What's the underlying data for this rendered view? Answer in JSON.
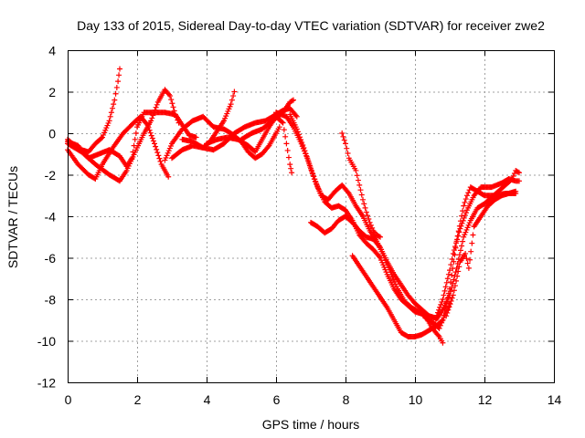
{
  "chart_data": {
    "type": "scatter",
    "title": "Day 133 of 2015, Sidereal Day-to-day VTEC variation (SDTVAR) for receiver zwe2",
    "xlabel": "GPS time / hours",
    "ylabel": "SDTVAR / TECUs",
    "xlim": [
      0,
      14
    ],
    "ylim": [
      -12,
      4
    ],
    "xticks": [
      0,
      2,
      4,
      6,
      8,
      10,
      12,
      14
    ],
    "yticks": [
      -12,
      -10,
      -8,
      -6,
      -4,
      -2,
      0,
      2,
      4
    ],
    "grid": true,
    "marker": "plus",
    "color": "#ff0000",
    "series": [
      {
        "points": [
          [
            0.0,
            -0.3
          ],
          [
            0.2,
            -0.6
          ],
          [
            0.4,
            -0.8
          ],
          [
            0.6,
            -0.9
          ],
          [
            0.8,
            -0.5
          ],
          [
            1.0,
            -0.2
          ],
          [
            1.2,
            0.6
          ],
          [
            1.35,
            1.6
          ],
          [
            1.45,
            2.5
          ],
          [
            1.5,
            3.1
          ]
        ]
      },
      {
        "points": [
          [
            0.0,
            -0.8
          ],
          [
            0.3,
            -1.5
          ],
          [
            0.6,
            -2.0
          ],
          [
            0.8,
            -2.2
          ],
          [
            1.0,
            -1.5
          ],
          [
            1.3,
            -0.7
          ],
          [
            1.6,
            0.0
          ],
          [
            1.9,
            0.5
          ],
          [
            2.1,
            0.8
          ],
          [
            2.3,
            0.4
          ],
          [
            2.5,
            -0.5
          ],
          [
            2.7,
            -1.5
          ],
          [
            2.9,
            -2.1
          ]
        ]
      },
      {
        "points": [
          [
            0.0,
            -0.5
          ],
          [
            0.4,
            -0.9
          ],
          [
            0.8,
            -1.5
          ],
          [
            1.2,
            -2.0
          ],
          [
            1.5,
            -2.3
          ],
          [
            1.7,
            -1.8
          ],
          [
            2.0,
            -0.7
          ],
          [
            2.2,
            0.0
          ],
          [
            2.4,
            0.6
          ],
          [
            2.6,
            1.5
          ],
          [
            2.8,
            2.1
          ],
          [
            2.95,
            1.8
          ],
          [
            3.1,
            0.9
          ],
          [
            3.2,
            0.5
          ]
        ]
      },
      {
        "points": [
          [
            0.0,
            -0.4
          ],
          [
            0.3,
            -0.6
          ],
          [
            0.6,
            -1.2
          ],
          [
            0.9,
            -1.0
          ],
          [
            1.2,
            -0.8
          ],
          [
            1.5,
            -1.1
          ],
          [
            1.7,
            -1.6
          ],
          [
            1.85,
            -1.2
          ],
          [
            2.0,
            0.3
          ],
          [
            2.2,
            1.0
          ],
          [
            2.5,
            1.0
          ],
          [
            2.8,
            1.0
          ],
          [
            3.1,
            0.9
          ],
          [
            3.3,
            0.4
          ],
          [
            3.5,
            -0.1
          ],
          [
            3.7,
            -0.2
          ]
        ]
      },
      {
        "points": [
          [
            2.8,
            -1.3
          ],
          [
            3.0,
            -0.5
          ],
          [
            3.3,
            0.2
          ],
          [
            3.6,
            0.6
          ],
          [
            3.9,
            0.8
          ],
          [
            4.2,
            0.3
          ],
          [
            4.5,
            0.2
          ],
          [
            4.7,
            0.0
          ],
          [
            5.0,
            -0.4
          ],
          [
            5.2,
            -0.9
          ],
          [
            5.4,
            -1.2
          ],
          [
            5.6,
            -1.0
          ],
          [
            5.8,
            -0.6
          ],
          [
            6.0,
            0.0
          ],
          [
            6.1,
            0.3
          ]
        ]
      },
      {
        "points": [
          [
            3.0,
            -1.2
          ],
          [
            3.3,
            -0.8
          ],
          [
            3.6,
            -0.6
          ],
          [
            3.9,
            -0.7
          ],
          [
            4.1,
            -0.4
          ],
          [
            4.3,
            0.1
          ],
          [
            4.5,
            0.6
          ],
          [
            4.7,
            1.4
          ],
          [
            4.8,
            2.0
          ]
        ]
      },
      {
        "points": [
          [
            3.3,
            -0.3
          ],
          [
            3.6,
            -0.4
          ],
          [
            3.9,
            -0.7
          ],
          [
            4.2,
            -0.8
          ],
          [
            4.5,
            -0.5
          ],
          [
            4.8,
            0.0
          ],
          [
            5.1,
            0.3
          ],
          [
            5.4,
            0.5
          ],
          [
            5.7,
            0.6
          ],
          [
            6.0,
            0.9
          ],
          [
            6.2,
            1.1
          ],
          [
            6.4,
            1.2
          ],
          [
            6.6,
            0.8
          ]
        ]
      },
      {
        "points": [
          [
            4.0,
            -0.5
          ],
          [
            4.3,
            -0.3
          ],
          [
            4.6,
            -0.2
          ],
          [
            4.9,
            -0.3
          ],
          [
            5.2,
            -0.6
          ],
          [
            5.4,
            -0.9
          ],
          [
            5.6,
            -0.3
          ],
          [
            5.8,
            0.3
          ],
          [
            6.0,
            0.8
          ],
          [
            6.2,
            0.5
          ],
          [
            6.3,
            -0.5
          ],
          [
            6.4,
            -1.5
          ],
          [
            6.45,
            -1.9
          ]
        ]
      },
      {
        "points": [
          [
            5.0,
            -0.3
          ],
          [
            5.3,
            0.0
          ],
          [
            5.6,
            0.2
          ],
          [
            5.9,
            0.6
          ],
          [
            6.2,
            1.0
          ],
          [
            6.4,
            1.5
          ],
          [
            6.5,
            1.6
          ]
        ]
      },
      {
        "points": [
          [
            6.0,
            1.0
          ],
          [
            6.3,
            0.8
          ],
          [
            6.5,
            0.3
          ],
          [
            6.7,
            -0.4
          ],
          [
            6.9,
            -1.2
          ],
          [
            7.1,
            -2.2
          ],
          [
            7.3,
            -3.0
          ],
          [
            7.5,
            -3.2
          ],
          [
            7.7,
            -2.8
          ],
          [
            7.9,
            -2.5
          ],
          [
            8.1,
            -2.9
          ],
          [
            8.3,
            -3.5
          ],
          [
            8.5,
            -4.0
          ],
          [
            8.7,
            -4.7
          ],
          [
            8.9,
            -5.2
          ],
          [
            9.1,
            -5.9
          ],
          [
            9.3,
            -6.7
          ],
          [
            9.5,
            -7.5
          ],
          [
            9.7,
            -8.1
          ],
          [
            9.9,
            -8.4
          ],
          [
            10.1,
            -8.6
          ],
          [
            10.3,
            -8.8
          ],
          [
            10.5,
            -9.4
          ],
          [
            10.7,
            -9.8
          ],
          [
            10.8,
            -10.1
          ]
        ]
      },
      {
        "points": [
          [
            6.4,
            0.9
          ],
          [
            6.6,
            0.2
          ],
          [
            6.8,
            -0.7
          ],
          [
            7.0,
            -1.7
          ],
          [
            7.2,
            -2.6
          ],
          [
            7.4,
            -3.3
          ],
          [
            7.6,
            -3.6
          ],
          [
            7.8,
            -3.5
          ],
          [
            8.0,
            -3.7
          ],
          [
            8.2,
            -4.2
          ],
          [
            8.4,
            -4.9
          ],
          [
            8.6,
            -5.3
          ],
          [
            8.8,
            -5.6
          ],
          [
            9.0,
            -6.0
          ],
          [
            9.2,
            -6.8
          ],
          [
            9.4,
            -7.5
          ],
          [
            9.6,
            -8.0
          ],
          [
            9.8,
            -8.3
          ],
          [
            10.0,
            -8.6
          ],
          [
            10.2,
            -8.7
          ],
          [
            10.4,
            -9.0
          ]
        ]
      },
      {
        "points": [
          [
            7.0,
            -4.3
          ],
          [
            7.2,
            -4.5
          ],
          [
            7.4,
            -4.8
          ],
          [
            7.6,
            -4.6
          ],
          [
            7.8,
            -4.2
          ],
          [
            8.0,
            -4.0
          ],
          [
            8.2,
            -4.3
          ],
          [
            8.4,
            -4.7
          ],
          [
            8.6,
            -5.0
          ],
          [
            8.8,
            -5.1
          ],
          [
            9.0,
            -5.5
          ],
          [
            9.2,
            -6.2
          ],
          [
            9.4,
            -6.8
          ],
          [
            9.6,
            -7.3
          ],
          [
            9.8,
            -7.8
          ],
          [
            10.0,
            -8.2
          ],
          [
            10.2,
            -8.5
          ],
          [
            10.4,
            -8.8
          ]
        ]
      },
      {
        "points": [
          [
            8.2,
            -5.9
          ],
          [
            8.4,
            -6.4
          ],
          [
            8.6,
            -6.9
          ],
          [
            8.8,
            -7.4
          ],
          [
            9.0,
            -7.9
          ],
          [
            9.2,
            -8.4
          ],
          [
            9.4,
            -9.0
          ],
          [
            9.6,
            -9.6
          ],
          [
            9.8,
            -9.8
          ],
          [
            10.0,
            -9.8
          ],
          [
            10.2,
            -9.7
          ],
          [
            10.4,
            -9.5
          ],
          [
            10.6,
            -9.3
          ],
          [
            10.8,
            -9.0
          ],
          [
            11.0,
            -8.2
          ]
        ]
      },
      {
        "points": [
          [
            7.9,
            0.0
          ],
          [
            8.0,
            -0.5
          ],
          [
            8.1,
            -1.2
          ],
          [
            8.2,
            -1.5
          ],
          [
            8.3,
            -1.8
          ],
          [
            8.4,
            -2.5
          ],
          [
            8.5,
            -3.2
          ],
          [
            8.6,
            -3.8
          ],
          [
            8.7,
            -4.3
          ],
          [
            8.8,
            -4.7
          ],
          [
            8.9,
            -4.9
          ],
          [
            9.0,
            -5.0
          ]
        ]
      },
      {
        "points": [
          [
            10.2,
            -8.6
          ],
          [
            10.4,
            -8.8
          ],
          [
            10.6,
            -8.9
          ],
          [
            10.8,
            -8.0
          ],
          [
            11.0,
            -6.6
          ],
          [
            11.1,
            -5.8
          ],
          [
            11.3,
            -4.6
          ],
          [
            11.5,
            -3.7
          ],
          [
            11.7,
            -3.0
          ],
          [
            11.9,
            -2.6
          ],
          [
            12.2,
            -2.6
          ],
          [
            12.5,
            -2.4
          ],
          [
            12.7,
            -2.2
          ],
          [
            12.9,
            -2.3
          ],
          [
            13.0,
            -2.3
          ]
        ]
      },
      {
        "points": [
          [
            10.3,
            -8.9
          ],
          [
            10.5,
            -9.1
          ],
          [
            10.7,
            -9.4
          ],
          [
            10.8,
            -9.0
          ],
          [
            11.0,
            -7.5
          ],
          [
            11.2,
            -5.2
          ],
          [
            11.4,
            -3.5
          ],
          [
            11.5,
            -3.0
          ],
          [
            11.6,
            -2.6
          ],
          [
            11.8,
            -2.8
          ],
          [
            12.0,
            -3.0
          ],
          [
            12.3,
            -3.0
          ],
          [
            12.6,
            -2.9
          ],
          [
            12.9,
            -2.9
          ]
        ]
      },
      {
        "points": [
          [
            10.6,
            -9.0
          ],
          [
            10.8,
            -8.5
          ],
          [
            11.0,
            -7.8
          ],
          [
            11.2,
            -6.5
          ],
          [
            11.4,
            -5.0
          ],
          [
            11.6,
            -4.2
          ],
          [
            11.8,
            -3.6
          ],
          [
            12.0,
            -3.4
          ],
          [
            12.2,
            -3.1
          ],
          [
            12.4,
            -2.8
          ],
          [
            12.6,
            -2.5
          ],
          [
            12.8,
            -2.2
          ],
          [
            12.9,
            -1.8
          ],
          [
            13.0,
            -1.9
          ]
        ]
      },
      {
        "points": [
          [
            10.9,
            -8.8
          ],
          [
            11.1,
            -7.8
          ],
          [
            11.3,
            -6.2
          ],
          [
            11.45,
            -5.8
          ],
          [
            11.55,
            -6.5
          ],
          [
            11.7,
            -4.5
          ],
          [
            11.9,
            -4.0
          ],
          [
            12.1,
            -3.5
          ],
          [
            12.3,
            -3.2
          ],
          [
            12.5,
            -3.0
          ],
          [
            12.7,
            -2.9
          ],
          [
            12.9,
            -2.8
          ]
        ]
      }
    ]
  }
}
